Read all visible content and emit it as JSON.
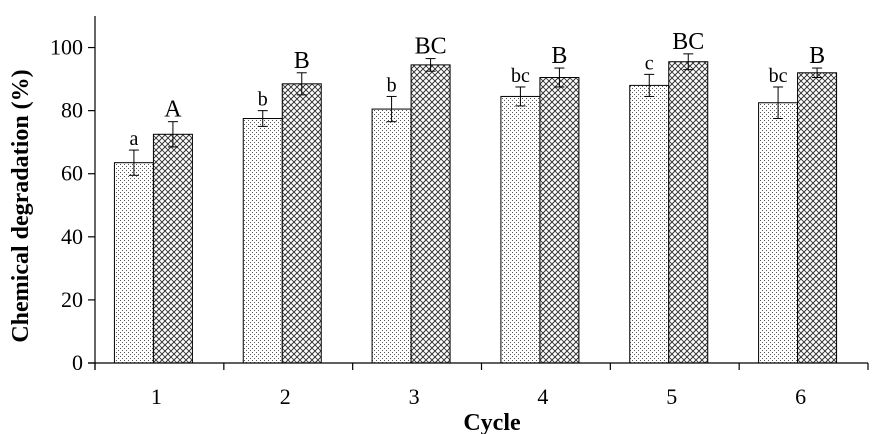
{
  "chart_data": {
    "type": "bar",
    "title": "",
    "xlabel": "Cycle",
    "ylabel": "Chemical degradation (%)",
    "ylim": [
      0,
      110
    ],
    "yticks": [
      0,
      20,
      40,
      60,
      80,
      100
    ],
    "categories": [
      "1",
      "2",
      "3",
      "4",
      "5",
      "6"
    ],
    "grid": false,
    "series": [
      {
        "values": [
          63.5,
          77.5,
          80.5,
          84.5,
          88,
          82.5
        ],
        "errors": [
          4,
          2.5,
          4,
          3,
          3.5,
          5
        ],
        "group_labels": [
          "a",
          "b",
          "b",
          "bc",
          "c",
          "bc"
        ],
        "pattern": "dots"
      },
      {
        "values": [
          72.5,
          88.5,
          94.5,
          90.5,
          95.5,
          92
        ],
        "errors": [
          4,
          3.5,
          2,
          3,
          2.5,
          1.5
        ],
        "group_labels": [
          "A",
          "B",
          "BC",
          "B",
          "BC",
          "B"
        ],
        "pattern": "crosshatch"
      }
    ]
  }
}
